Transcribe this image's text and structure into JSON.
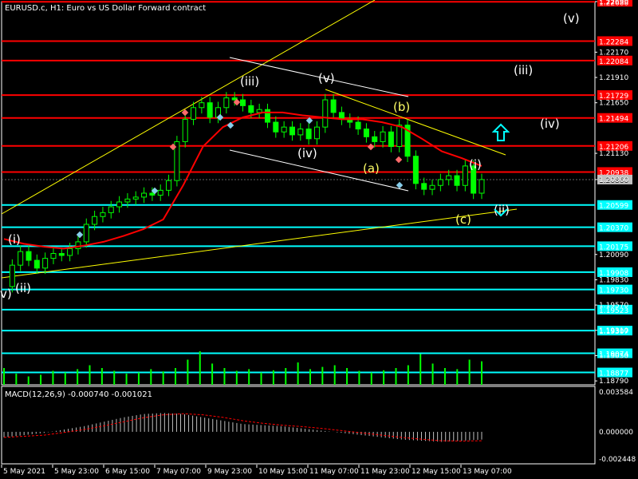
{
  "title": "EURUSD.c, H1:  Euro vs US Dollar Forward contract",
  "macd_label": "MACD(12,26,9) -0.000740 -0.001021",
  "colors": {
    "background": "#000000",
    "candle": "#00ff00",
    "resistance": "#ff0000",
    "support": "#00ffff",
    "moving_average": "#ff0000",
    "trendline": "#ffff00",
    "channel": "#ffffff",
    "wave_white": "#ffffff",
    "wave_yellow": "#ffff66",
    "volume": "#00ff00",
    "macd_histogram": "#c0c0c0",
    "macd_signal": "#ff0000",
    "grid": "#3a3a3a",
    "axis": "#ffffff"
  },
  "chart_data": {
    "type": "candlestick",
    "symbol": "EURUSD.c",
    "timeframe": "H1",
    "ylim": [
      1.1875,
      1.2269
    ],
    "y_ticks": [
      "1.22690",
      "1.22170",
      "1.21910",
      "1.21650",
      "1.21130",
      "1.20860",
      "1.20090",
      "1.19830",
      "1.19570",
      "1.19310",
      "1.19050",
      "1.18790"
    ],
    "x_ticks": [
      "5 May 2021",
      "5 May 23:00",
      "6 May 15:00",
      "7 May 07:00",
      "9 May 23:00",
      "10 May 15:00",
      "11 May 07:00",
      "11 May 23:00",
      "12 May 15:00",
      "13 May 07:00"
    ],
    "current_price": "1.20860",
    "resistance_levels": [
      "1.22688",
      "1.22284",
      "1.22084",
      "1.21729",
      "1.21494",
      "1.21206",
      "1.20938"
    ],
    "support_levels": [
      "1.20599",
      "1.20370",
      "1.20175",
      "1.19908",
      "1.19730",
      "1.19523",
      "1.19307",
      "1.19074",
      "1.18877"
    ],
    "price_series": [
      1.1976,
      1.1998,
      1.2012,
      1.2003,
      1.1995,
      1.2005,
      1.201,
      1.2008,
      1.2015,
      1.2022,
      1.204,
      1.2048,
      1.2052,
      1.2058,
      1.2063,
      1.2066,
      1.2068,
      1.2072,
      1.207,
      1.2075,
      1.2085,
      1.2125,
      1.2148,
      1.216,
      1.2165,
      1.215,
      1.216,
      1.217,
      1.2168,
      1.2162,
      1.2155,
      1.2158,
      1.2145,
      1.2135,
      1.214,
      1.2132,
      1.2138,
      1.2128,
      1.214,
      1.2168,
      1.2155,
      1.2148,
      1.2145,
      1.2138,
      1.213,
      1.2125,
      1.2135,
      1.212,
      1.2142,
      1.211,
      1.2082,
      1.2076,
      1.208,
      1.2086,
      1.209,
      1.208,
      1.21,
      1.2072,
      1.2086
    ],
    "moving_average": [
      1.2025,
      1.202,
      1.2017,
      1.2015,
      1.2018,
      1.2022,
      1.2028,
      1.2035,
      1.2045,
      1.208,
      1.212,
      1.214,
      1.215,
      1.2155,
      1.2155,
      1.2152,
      1.215,
      1.2148,
      1.2148,
      1.2145,
      1.214,
      1.2128,
      1.2115,
      1.2108,
      1.21
    ],
    "volume": [
      30,
      20,
      15,
      18,
      25,
      22,
      28,
      35,
      30,
      25,
      20,
      22,
      28,
      24,
      30,
      45,
      60,
      38,
      30,
      25,
      28,
      22,
      26,
      30,
      40,
      28,
      32,
      35,
      30,
      25,
      22,
      26,
      30,
      35,
      55,
      38,
      30,
      28,
      45,
      42
    ],
    "macd": [
      -0.0005,
      -0.0003,
      -0.0001,
      0.0002,
      0.0005,
      0.0009,
      0.0013,
      0.0016,
      0.0017,
      0.0016,
      0.0013,
      0.001,
      0.0007,
      0.0006,
      0.0005,
      0.0003,
      0.0001,
      -0.0001,
      -0.0003,
      -0.0005,
      -0.0007,
      -0.0008,
      -0.0009,
      -0.0008,
      -0.0007
    ],
    "macd_ylim": [
      -0.002448,
      0.003584
    ],
    "macd_ticks": [
      "0.003584",
      "0.000000",
      "-0.002448"
    ]
  },
  "wave_labels": [
    "(i)",
    "(ii)",
    "(iii)",
    "(iv)",
    "(v)",
    "(a)",
    "(b)",
    "(c)",
    "(i)",
    "(ii)",
    "(iii)",
    "(iv)",
    "(v)",
    "v)"
  ]
}
